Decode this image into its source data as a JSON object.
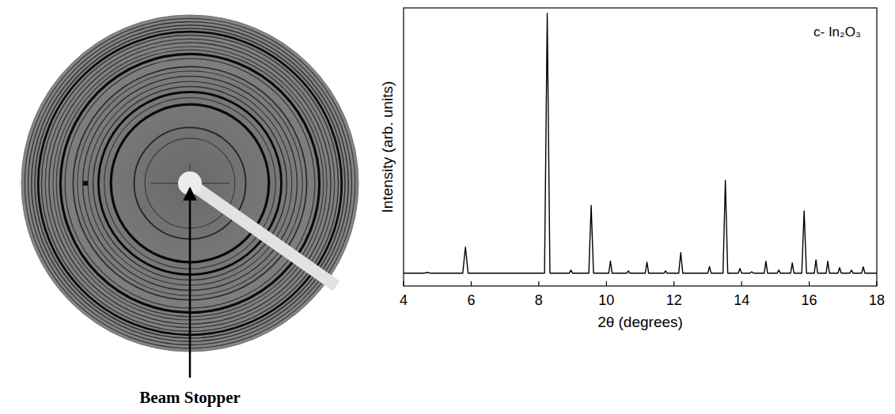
{
  "chart_data": {
    "type": "line",
    "annotations": [
      "c- In₂O₃"
    ],
    "xlabel": "2θ (degrees)",
    "ylabel": "Intensity (arb. units)",
    "x": [
      4.0,
      4.6,
      4.7,
      4.8,
      5.75,
      5.83,
      5.91,
      8.17,
      8.25,
      8.33,
      8.9,
      8.95,
      9.0,
      9.48,
      9.55,
      9.62,
      10.07,
      10.12,
      10.17,
      10.6,
      10.65,
      10.7,
      11.15,
      11.2,
      11.25,
      11.7,
      11.75,
      11.8,
      12.14,
      12.2,
      12.26,
      13.0,
      13.05,
      13.1,
      13.45,
      13.52,
      13.59,
      13.9,
      13.95,
      14.0,
      14.25,
      14.3,
      14.35,
      14.67,
      14.72,
      14.77,
      15.05,
      15.1,
      15.15,
      15.45,
      15.5,
      15.55,
      15.78,
      15.85,
      15.92,
      16.15,
      16.2,
      16.25,
      16.5,
      16.55,
      16.6,
      16.85,
      16.9,
      16.95,
      17.2,
      17.25,
      17.3,
      17.55,
      17.6,
      17.65,
      18.0
    ],
    "values": [
      4.6,
      4.6,
      4.9,
      4.6,
      4.6,
      14,
      4.6,
      4.6,
      98,
      4.6,
      4.6,
      5.7,
      4.6,
      4.6,
      29,
      4.6,
      4.6,
      9,
      4.6,
      4.6,
      5.4,
      4.6,
      4.6,
      8.6,
      4.6,
      4.6,
      5.4,
      4.6,
      4.6,
      12,
      4.6,
      4.6,
      7,
      4.6,
      4.6,
      38,
      4.6,
      4.6,
      6.3,
      4.6,
      4.6,
      5.1,
      4.6,
      4.6,
      8.9,
      4.6,
      4.6,
      5.7,
      4.6,
      4.6,
      8.3,
      4.6,
      4.6,
      27,
      4.6,
      4.6,
      9.4,
      4.6,
      4.6,
      8.9,
      4.6,
      4.6,
      6.6,
      4.6,
      4.6,
      5.7,
      4.6,
      4.6,
      6.9,
      4.6,
      4.6
    ],
    "color": "#000000",
    "xlim": [
      4,
      18
    ],
    "xticks": [
      4,
      6,
      8,
      10,
      12,
      14,
      16,
      18
    ],
    "ylim": [
      0,
      100
    ],
    "tick_labels": "x",
    "grid": false
  },
  "detector_image": {
    "label": "Beam Stopper"
  }
}
